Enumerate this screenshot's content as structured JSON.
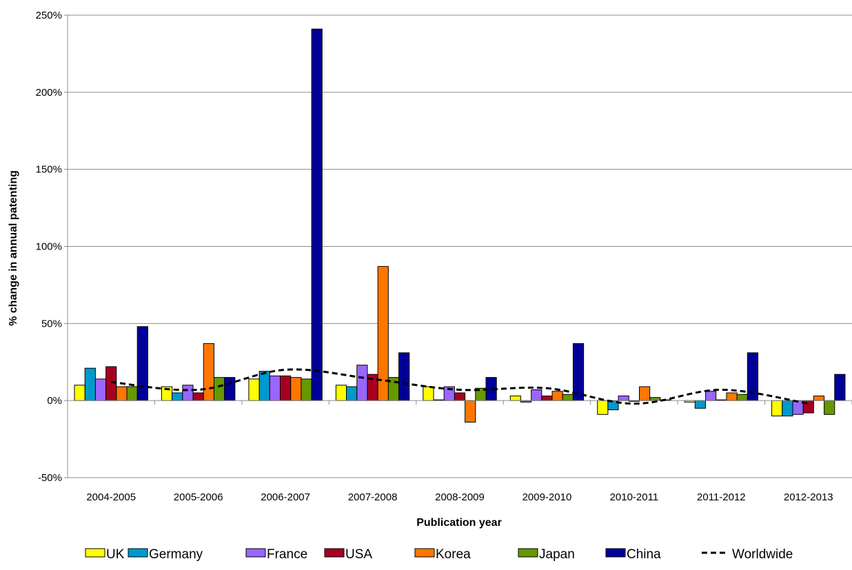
{
  "chart_data": {
    "type": "bar",
    "title": "",
    "xlabel": "Publication year",
    "ylabel": "% change in annual patenting",
    "ylim": [
      -50,
      250
    ],
    "yticks": [
      -50,
      0,
      50,
      100,
      150,
      200,
      250
    ],
    "ytick_labels": [
      "-50%",
      "0%",
      "50%",
      "100%",
      "150%",
      "200%",
      "250%"
    ],
    "grid": "horizontal",
    "legend_position": "bottom",
    "categories": [
      "2004-2005",
      "2005-2006",
      "2006-2007",
      "2007-2008",
      "2008-2009",
      "2009-2010",
      "2010-2011",
      "2011-2012",
      "2012-2013"
    ],
    "series": [
      {
        "name": "UK",
        "kind": "bar",
        "color": "#FFFF00",
        "values": [
          10,
          9,
          14,
          10,
          9,
          3,
          -9,
          -1,
          -10
        ]
      },
      {
        "name": "Germany",
        "kind": "bar",
        "color": "#0099CC",
        "values": [
          21,
          5,
          19,
          9,
          0.5,
          -1,
          -6,
          -5,
          -10
        ]
      },
      {
        "name": "France",
        "kind": "bar",
        "color": "#9966FF",
        "values": [
          14,
          10,
          16,
          23,
          9,
          7,
          3,
          6,
          -9
        ]
      },
      {
        "name": "USA",
        "kind": "bar",
        "color": "#A50021",
        "values": [
          22,
          5,
          16,
          17,
          5,
          3,
          -0.5,
          0.5,
          -8
        ]
      },
      {
        "name": "Korea",
        "kind": "bar",
        "color": "#FF7700",
        "values": [
          9,
          37,
          15,
          87,
          -14,
          6,
          9,
          5,
          3
        ]
      },
      {
        "name": "Japan",
        "kind": "bar",
        "color": "#669900",
        "values": [
          9,
          15,
          14,
          15,
          8,
          4,
          2,
          4,
          -9
        ]
      },
      {
        "name": "China",
        "kind": "bar",
        "color": "#000099",
        "values": [
          48,
          15,
          241,
          31,
          15,
          37,
          0.5,
          31,
          17
        ]
      },
      {
        "name": "Worldwide",
        "kind": "line",
        "color": "#000000",
        "dash": "dashed",
        "values": [
          12,
          7,
          20,
          14,
          7,
          8,
          -2,
          7,
          -2
        ]
      }
    ]
  }
}
